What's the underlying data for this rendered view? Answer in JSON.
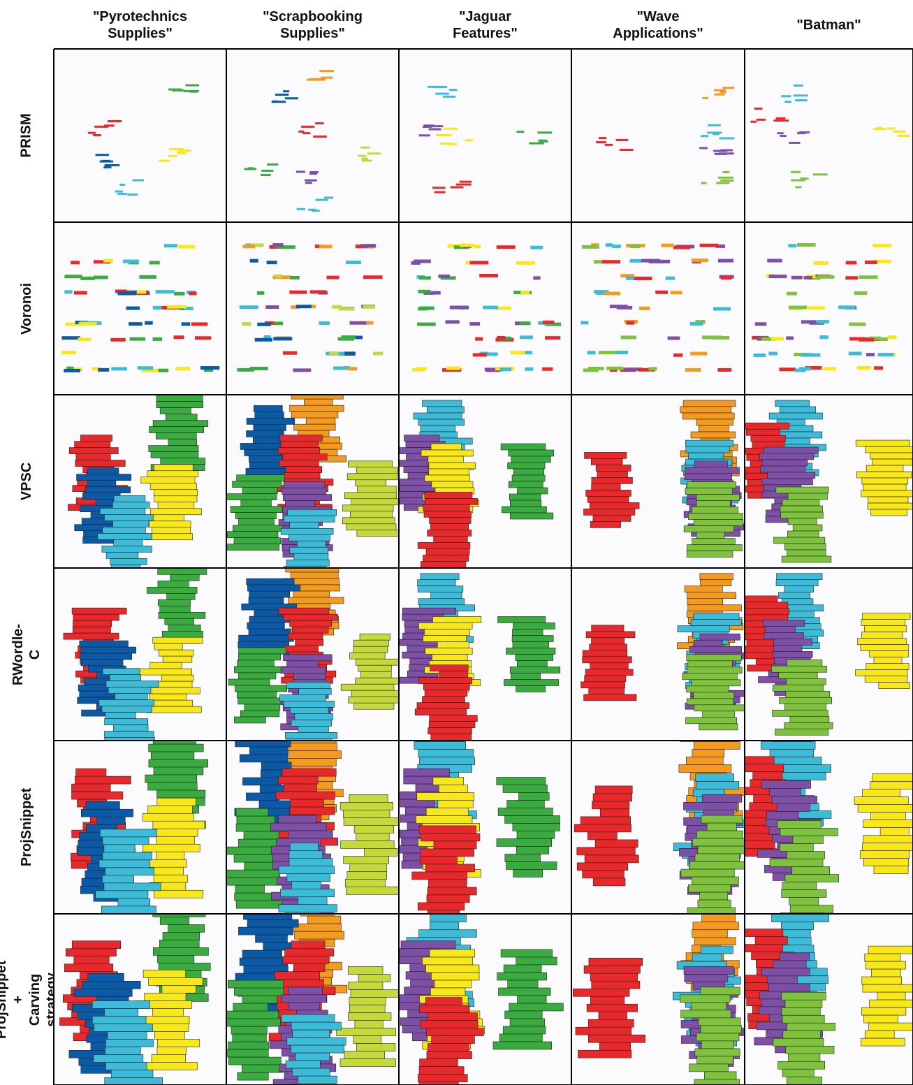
{
  "columns": [
    "\"Pyrotechnics\nSupplies\"",
    "\"Scrapbooking\nSupplies\"",
    "\"Jaguar\nFeatures\"",
    "\"Wave\nApplications\"",
    "\"Batman\""
  ],
  "rows": [
    "PRISM",
    "Voronoi",
    "VPSC",
    "RWordle-C",
    "ProjSnippet",
    "ProjSnippet +\nCarving strategy"
  ],
  "palette": {
    "red": "#e8282a",
    "green": "#3aac3f",
    "dark_blue": "#0b5aa8",
    "cyan": "#3cbcd8",
    "yellow": "#f8e81a",
    "orange": "#f39a1f",
    "purple": "#7d4fa6",
    "lime": "#c6d93a",
    "light_green": "#7fc23e",
    "cell_background": "#fbfbfd",
    "border": "#000000"
  }
}
